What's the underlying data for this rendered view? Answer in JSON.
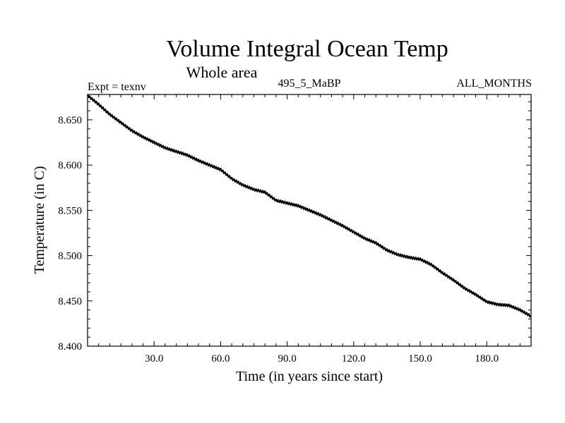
{
  "chart_data": {
    "type": "line",
    "title": "Volume Integral Ocean Temp",
    "subtitle": "Whole area",
    "experiment": "Expt = texnv",
    "period": "495_5_MaBP",
    "months": "ALL_MONTHS",
    "xlabel": "Time (in years since start)",
    "ylabel": "Temperature (in C)",
    "xlim": [
      0,
      200
    ],
    "ylim": [
      8.4,
      8.678
    ],
    "x_ticks": [
      30,
      60,
      90,
      120,
      150,
      180
    ],
    "x_tick_labels": [
      "30.0",
      "60.0",
      "90.0",
      "120.0",
      "150.0",
      "180.0"
    ],
    "y_ticks": [
      8.4,
      8.45,
      8.5,
      8.55,
      8.6,
      8.65
    ],
    "y_tick_labels": [
      "8.400",
      "8.450",
      "8.500",
      "8.550",
      "8.600",
      "8.650"
    ],
    "series": [
      {
        "name": "Volume Integral Ocean Temp",
        "x": [
          0,
          5,
          10,
          15,
          20,
          25,
          30,
          35,
          40,
          45,
          50,
          55,
          60,
          65,
          70,
          75,
          80,
          85,
          90,
          95,
          100,
          105,
          110,
          115,
          120,
          125,
          130,
          135,
          140,
          145,
          150,
          155,
          160,
          165,
          170,
          175,
          180,
          185,
          190,
          195,
          200
        ],
        "y": [
          8.677,
          8.667,
          8.656,
          8.647,
          8.638,
          8.631,
          8.625,
          8.619,
          8.615,
          8.611,
          8.605,
          8.6,
          8.595,
          8.585,
          8.578,
          8.573,
          8.57,
          8.561,
          8.558,
          8.555,
          8.55,
          8.545,
          8.539,
          8.533,
          8.526,
          8.519,
          8.514,
          8.506,
          8.501,
          8.498,
          8.496,
          8.49,
          8.481,
          8.473,
          8.464,
          8.457,
          8.449,
          8.446,
          8.445,
          8.44,
          8.433
        ]
      }
    ]
  }
}
